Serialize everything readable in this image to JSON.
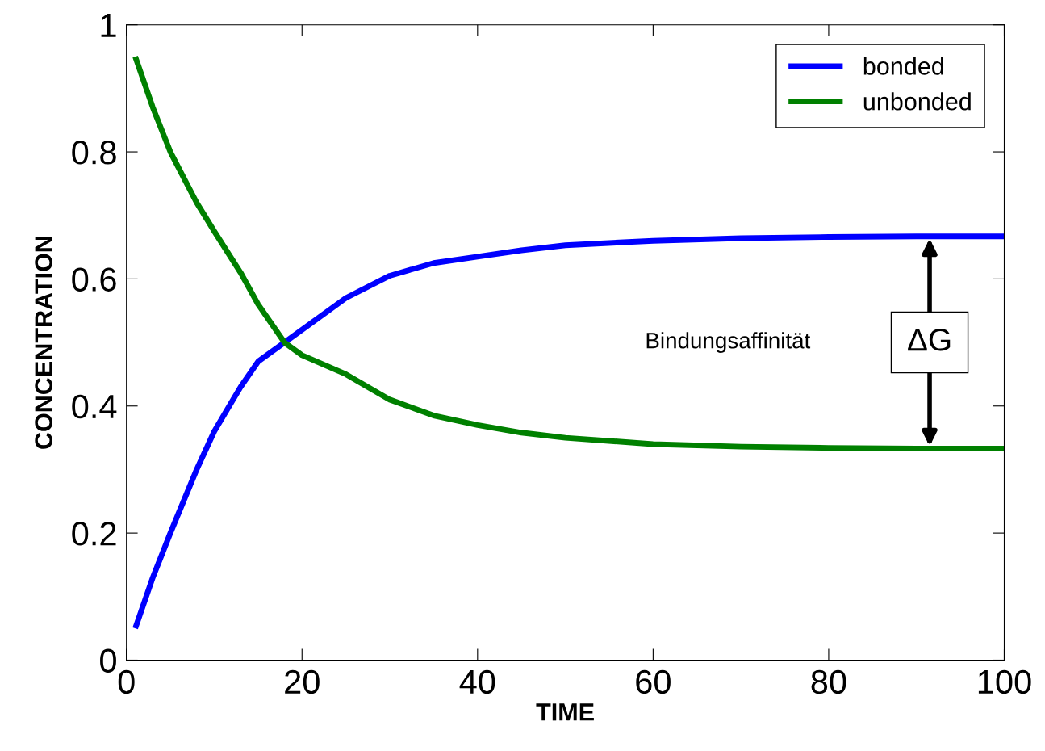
{
  "chart_data": {
    "type": "line",
    "xlabel": "TIME",
    "ylabel": "CONCENTRATION",
    "xlim": [
      0,
      100
    ],
    "ylim": [
      0,
      1
    ],
    "xticks": [
      0,
      20,
      40,
      60,
      80,
      100
    ],
    "yticks": [
      0,
      0.2,
      0.4,
      0.6,
      0.8,
      1
    ],
    "grid": false,
    "legend": "top right",
    "marker": "none",
    "line_style": "solid",
    "x": [
      1,
      3,
      5,
      8,
      10,
      13,
      15,
      18,
      20,
      25,
      30,
      35,
      40,
      45,
      50,
      60,
      70,
      80,
      90,
      100
    ],
    "series": [
      {
        "name": "bonded",
        "color": "#0000ff",
        "values": [
          0.05,
          0.13,
          0.2,
          0.3,
          0.36,
          0.43,
          0.47,
          0.5,
          0.52,
          0.57,
          0.605,
          0.625,
          0.635,
          0.645,
          0.653,
          0.66,
          0.664,
          0.666,
          0.667,
          0.667
        ]
      },
      {
        "name": "unbonded",
        "color": "#008000",
        "values": [
          0.95,
          0.87,
          0.8,
          0.72,
          0.675,
          0.61,
          0.56,
          0.5,
          0.48,
          0.45,
          0.41,
          0.385,
          0.37,
          0.358,
          0.35,
          0.34,
          0.336,
          0.334,
          0.333,
          0.333
        ]
      }
    ],
    "annotations": [
      "Bindungsaffinität",
      "ΔG"
    ]
  }
}
